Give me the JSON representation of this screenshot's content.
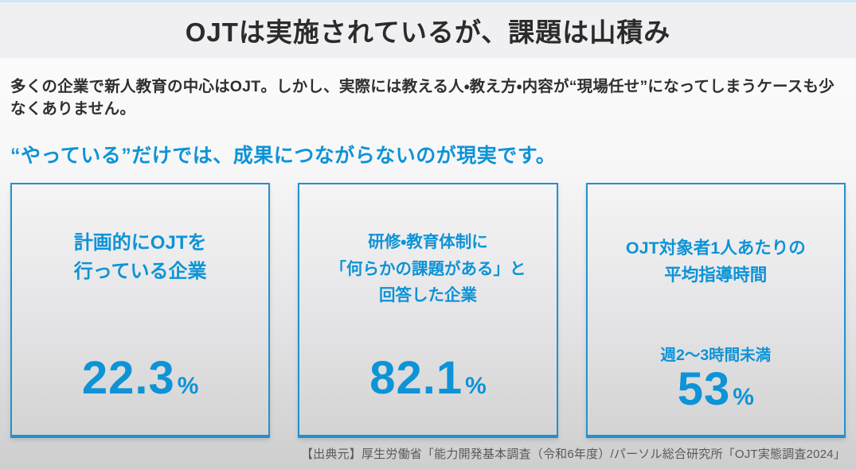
{
  "header": {
    "title": "OJTは実施されているが、課題は山積み"
  },
  "intro": {
    "text": "多くの企業で新人教育の中心はOJT。しかし、実際には教える人・教え方・内容が“現場任せ”になってしまうケースも少なくありません。"
  },
  "lead": {
    "text": "“やっている”だけでは、成果につながらないのが現実です。"
  },
  "cards": [
    {
      "title_lines": [
        "計画的にOJTを",
        "行っている企業"
      ],
      "value": "22.3",
      "unit": "%"
    },
    {
      "title_lines": [
        "研修・教育体制に",
        "「何らかの課題がある」と",
        "回答した企業"
      ],
      "value": "82.1",
      "unit": "%"
    },
    {
      "title_lines": [
        "OJT対象者1人あたりの",
        "平均指導時間"
      ],
      "subtitle": "週2〜3時間未満",
      "value": "53",
      "unit": "%"
    }
  ],
  "footer": {
    "source": "【出典元】厚生労働省「能力開発基本調査（令和6年度）/パーソル総合研究所「OJT実態調査2024」"
  },
  "colors": {
    "accent_blue": "#0e93d6",
    "border_blue": "#2191ce",
    "header_bg": "#f0f0f2",
    "text_dark": "#2f2f2f",
    "source_gray": "#595959",
    "top_strip_blue": "#cfe8f7"
  }
}
